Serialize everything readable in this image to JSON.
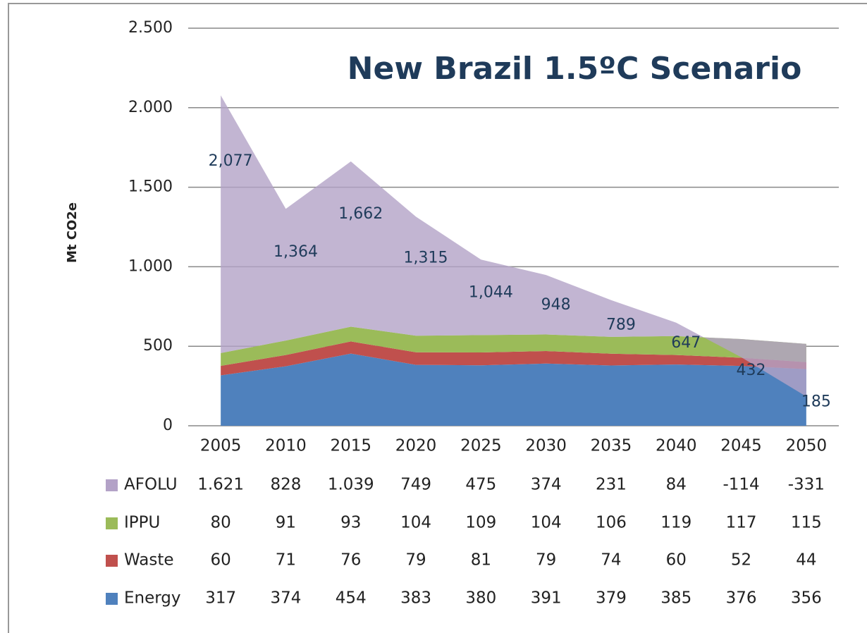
{
  "chart_data": {
    "type": "area",
    "title": "New Brazil 1.5ºC Scenario",
    "y_label": "Mt CO2e",
    "categories": [
      "2005",
      "2010",
      "2015",
      "2020",
      "2025",
      "2030",
      "2035",
      "2040",
      "2045",
      "2050"
    ],
    "series": [
      {
        "name": "Energy",
        "color": "#4f81bd",
        "values": [
          317,
          374,
          454,
          383,
          380,
          391,
          379,
          385,
          376,
          356
        ]
      },
      {
        "name": "Waste",
        "color": "#c0504d",
        "values": [
          60,
          71,
          76,
          79,
          81,
          79,
          74,
          60,
          52,
          44
        ]
      },
      {
        "name": "IPPU",
        "color": "#9bbb59",
        "values": [
          80,
          91,
          93,
          104,
          109,
          104,
          106,
          119,
          117,
          115
        ]
      },
      {
        "name": "AFOLU",
        "color": "#b3a2c7",
        "values": [
          1621,
          828,
          1039,
          749,
          475,
          374,
          231,
          84,
          -114,
          -331
        ],
        "value_labels": [
          "1.621",
          "828",
          "1.039",
          "749",
          "475",
          "374",
          "231",
          "84",
          "-114",
          "-331"
        ]
      }
    ],
    "totals": [
      2077,
      1364,
      1662,
      1315,
      1044,
      948,
      789,
      647,
      432,
      185
    ],
    "total_labels": [
      "2,077",
      "1,364",
      "1,662",
      "1,315",
      "1,044",
      "948",
      "789",
      "647",
      "432",
      "185"
    ],
    "ylim": [
      0,
      2500
    ],
    "yticks": [
      0,
      500,
      {
        "value": 1000,
        "label": "1.000"
      },
      {
        "value": 1500,
        "label": "1.500"
      },
      {
        "value": 2000,
        "label": "2.000"
      },
      {
        "value": 2500,
        "label": "2.500"
      }
    ],
    "grid": true
  }
}
